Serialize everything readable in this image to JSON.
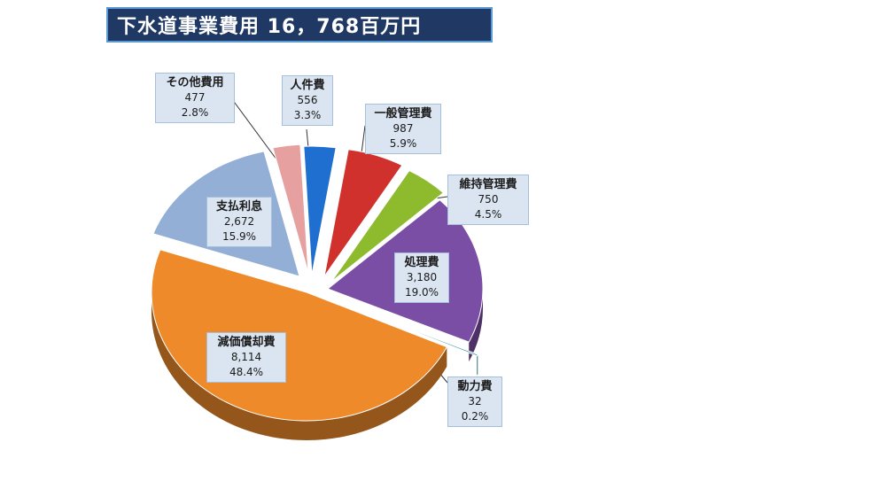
{
  "title": "下水道事業費用 16，768百万円",
  "colors": {
    "title_bg": "#1f3864",
    "label_bg": "#dbe5f1"
  },
  "chart_data": {
    "type": "pie",
    "title": "下水道事業費用 16，768百万円",
    "unit": "百万円",
    "total": 16768,
    "slices": [
      {
        "name": "人件費",
        "value": 556,
        "value_label": "556",
        "percent": 3.3,
        "percent_label": "3.3%",
        "color": "#1f6fd1"
      },
      {
        "name": "一般管理費",
        "value": 987,
        "value_label": "987",
        "percent": 5.9,
        "percent_label": "5.9%",
        "color": "#d0312d"
      },
      {
        "name": "維持管理費",
        "value": 750,
        "value_label": "750",
        "percent": 4.5,
        "percent_label": "4.5%",
        "color": "#8dbb2d"
      },
      {
        "name": "処理費",
        "value": 3180,
        "value_label": "3,180",
        "percent": 19.0,
        "percent_label": "19.0%",
        "color": "#7a4ea5"
      },
      {
        "name": "動力費",
        "value": 32,
        "value_label": "32",
        "percent": 0.2,
        "percent_label": "0.2%",
        "color": "#2e8ea3"
      },
      {
        "name": "減価償却費",
        "value": 8114,
        "value_label": "8,114",
        "percent": 48.4,
        "percent_label": "48.4%",
        "color": "#ee8a2a"
      },
      {
        "name": "支払利息",
        "value": 2672,
        "value_label": "2,672",
        "percent": 15.9,
        "percent_label": "15.9%",
        "color": "#93afd6"
      },
      {
        "name": "その他費用",
        "value": 477,
        "value_label": "477",
        "percent": 2.8,
        "percent_label": "2.8%",
        "color": "#e6a0a0"
      }
    ]
  }
}
